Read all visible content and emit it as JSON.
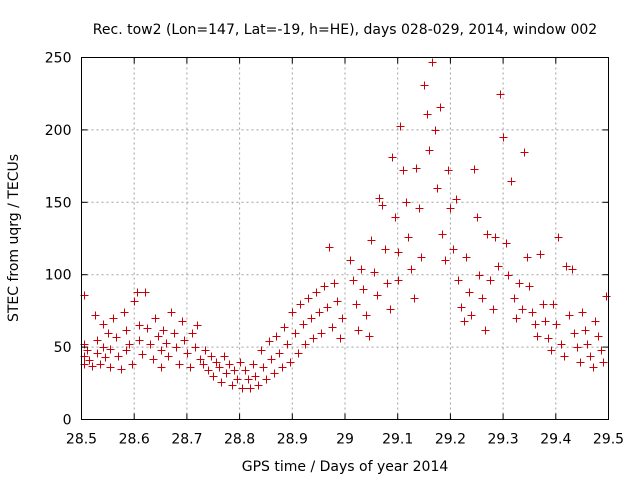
{
  "chart_data": {
    "type": "scatter",
    "title": "Rec. tow2 (Lon=147, Lat=-19, h=HE), days 028-029, 2014, window 002",
    "xlabel": "GPS time / Days of year 2014",
    "ylabel": "STEC from uqrg / TECUs",
    "xlim": [
      28.5,
      29.5
    ],
    "ylim": [
      0,
      250
    ],
    "x_ticks": [
      28.5,
      28.6,
      28.7,
      28.8,
      28.9,
      29,
      29.1,
      29.2,
      29.3,
      29.4,
      29.5
    ],
    "x_tick_labels": [
      "28.5",
      "28.6",
      "28.7",
      "28.8",
      "28.9",
      "29",
      "29.1",
      "29.2",
      "29.3",
      "29.4",
      "29.5"
    ],
    "y_ticks": [
      0,
      50,
      100,
      150,
      200,
      250
    ],
    "y_tick_labels": [
      "0",
      "50",
      "100",
      "150",
      "200",
      "250"
    ],
    "grid": true,
    "legend": "none",
    "marker": "+",
    "color": "#c8000a",
    "series": [
      {
        "name": "STEC",
        "points": [
          [
            28.505,
            86
          ],
          [
            28.505,
            52
          ],
          [
            28.505,
            44
          ],
          [
            28.505,
            38
          ],
          [
            28.51,
            48
          ],
          [
            28.515,
            41
          ],
          [
            28.52,
            37
          ],
          [
            28.525,
            72
          ],
          [
            28.53,
            55
          ],
          [
            28.53,
            46
          ],
          [
            28.535,
            38
          ],
          [
            28.54,
            66
          ],
          [
            28.54,
            50
          ],
          [
            28.545,
            43
          ],
          [
            28.55,
            60
          ],
          [
            28.555,
            49
          ],
          [
            28.555,
            36
          ],
          [
            28.56,
            70
          ],
          [
            28.565,
            57
          ],
          [
            28.57,
            44
          ],
          [
            28.575,
            35
          ],
          [
            28.58,
            74
          ],
          [
            28.585,
            62
          ],
          [
            28.585,
            48
          ],
          [
            28.59,
            52
          ],
          [
            28.595,
            38
          ],
          [
            28.6,
            82
          ],
          [
            28.605,
            88
          ],
          [
            28.61,
            65
          ],
          [
            28.61,
            55
          ],
          [
            28.615,
            45
          ],
          [
            28.62,
            88
          ],
          [
            28.625,
            63
          ],
          [
            28.63,
            52
          ],
          [
            28.635,
            42
          ],
          [
            28.64,
            70
          ],
          [
            28.645,
            58
          ],
          [
            28.65,
            48
          ],
          [
            28.65,
            36
          ],
          [
            28.655,
            62
          ],
          [
            28.66,
            53
          ],
          [
            28.665,
            44
          ],
          [
            28.67,
            74
          ],
          [
            28.675,
            60
          ],
          [
            28.68,
            50
          ],
          [
            28.685,
            38
          ],
          [
            28.69,
            68
          ],
          [
            28.695,
            55
          ],
          [
            28.7,
            46
          ],
          [
            28.705,
            36
          ],
          [
            28.71,
            60
          ],
          [
            28.715,
            50
          ],
          [
            28.72,
            65
          ],
          [
            28.725,
            42
          ],
          [
            28.73,
            38
          ],
          [
            28.735,
            48
          ],
          [
            28.74,
            34
          ],
          [
            28.745,
            44
          ],
          [
            28.75,
            30
          ],
          [
            28.755,
            40
          ],
          [
            28.76,
            36
          ],
          [
            28.765,
            26
          ],
          [
            28.77,
            44
          ],
          [
            28.775,
            32
          ],
          [
            28.78,
            38
          ],
          [
            28.785,
            24
          ],
          [
            28.79,
            34
          ],
          [
            28.795,
            28
          ],
          [
            28.8,
            40
          ],
          [
            28.805,
            22
          ],
          [
            28.81,
            34
          ],
          [
            28.815,
            28
          ],
          [
            28.82,
            22
          ],
          [
            28.825,
            38
          ],
          [
            28.83,
            30
          ],
          [
            28.835,
            24
          ],
          [
            28.84,
            48
          ],
          [
            28.845,
            36
          ],
          [
            28.85,
            28
          ],
          [
            28.855,
            54
          ],
          [
            28.86,
            42
          ],
          [
            28.865,
            32
          ],
          [
            28.87,
            58
          ],
          [
            28.875,
            46
          ],
          [
            28.88,
            36
          ],
          [
            28.885,
            64
          ],
          [
            28.89,
            52
          ],
          [
            28.895,
            40
          ],
          [
            28.9,
            74
          ],
          [
            28.905,
            60
          ],
          [
            28.91,
            46
          ],
          [
            28.915,
            80
          ],
          [
            28.92,
            66
          ],
          [
            28.925,
            52
          ],
          [
            28.93,
            84
          ],
          [
            28.935,
            70
          ],
          [
            28.94,
            56
          ],
          [
            28.945,
            88
          ],
          [
            28.95,
            74
          ],
          [
            28.955,
            60
          ],
          [
            28.96,
            92
          ],
          [
            28.965,
            78
          ],
          [
            28.97,
            119
          ],
          [
            28.975,
            64
          ],
          [
            28.98,
            94
          ],
          [
            28.985,
            82
          ],
          [
            28.99,
            56
          ],
          [
            28.995,
            70
          ],
          [
            29.01,
            110
          ],
          [
            29.015,
            96
          ],
          [
            29.02,
            80
          ],
          [
            29.025,
            62
          ],
          [
            29.03,
            104
          ],
          [
            29.035,
            90
          ],
          [
            29.04,
            72
          ],
          [
            29.045,
            58
          ],
          [
            29.05,
            124
          ],
          [
            29.055,
            102
          ],
          [
            29.06,
            86
          ],
          [
            29.065,
            153
          ],
          [
            29.07,
            148
          ],
          [
            29.075,
            118
          ],
          [
            29.08,
            94
          ],
          [
            29.085,
            76
          ],
          [
            29.09,
            181
          ],
          [
            29.095,
            140
          ],
          [
            29.1,
            116
          ],
          [
            29.1,
            96
          ],
          [
            29.105,
            203
          ],
          [
            29.11,
            172
          ],
          [
            29.115,
            150
          ],
          [
            29.12,
            126
          ],
          [
            29.125,
            104
          ],
          [
            29.13,
            84
          ],
          [
            29.135,
            174
          ],
          [
            29.14,
            146
          ],
          [
            29.145,
            112
          ],
          [
            29.15,
            231
          ],
          [
            29.155,
            211
          ],
          [
            29.16,
            186
          ],
          [
            29.165,
            247
          ],
          [
            29.17,
            200
          ],
          [
            29.175,
            160
          ],
          [
            29.18,
            216
          ],
          [
            29.185,
            128
          ],
          [
            29.19,
            110
          ],
          [
            29.195,
            172
          ],
          [
            29.2,
            146
          ],
          [
            29.205,
            118
          ],
          [
            29.21,
            152
          ],
          [
            29.215,
            96
          ],
          [
            29.22,
            78
          ],
          [
            29.225,
            68
          ],
          [
            29.23,
            112
          ],
          [
            29.235,
            88
          ],
          [
            29.24,
            72
          ],
          [
            29.245,
            173
          ],
          [
            29.25,
            140
          ],
          [
            29.255,
            100
          ],
          [
            29.26,
            84
          ],
          [
            29.265,
            62
          ],
          [
            29.27,
            128
          ],
          [
            29.275,
            96
          ],
          [
            29.28,
            76
          ],
          [
            29.285,
            126
          ],
          [
            29.29,
            106
          ],
          [
            29.295,
            225
          ],
          [
            29.3,
            195
          ],
          [
            29.305,
            122
          ],
          [
            29.31,
            100
          ],
          [
            29.315,
            165
          ],
          [
            29.32,
            84
          ],
          [
            29.325,
            70
          ],
          [
            29.33,
            94
          ],
          [
            29.335,
            76
          ],
          [
            29.34,
            185
          ],
          [
            29.345,
            112
          ],
          [
            29.35,
            92
          ],
          [
            29.355,
            74
          ],
          [
            29.36,
            66
          ],
          [
            29.365,
            58
          ],
          [
            29.37,
            114
          ],
          [
            29.375,
            80
          ],
          [
            29.38,
            68
          ],
          [
            29.385,
            56
          ],
          [
            29.39,
            48
          ],
          [
            29.395,
            80
          ],
          [
            29.4,
            66
          ],
          [
            29.405,
            126
          ],
          [
            29.41,
            52
          ],
          [
            29.415,
            44
          ],
          [
            29.42,
            106
          ],
          [
            29.425,
            72
          ],
          [
            29.43,
            104
          ],
          [
            29.435,
            60
          ],
          [
            29.44,
            50
          ],
          [
            29.445,
            40
          ],
          [
            29.45,
            74
          ],
          [
            29.455,
            62
          ],
          [
            29.46,
            52
          ],
          [
            29.465,
            44
          ],
          [
            29.47,
            36
          ],
          [
            29.475,
            68
          ],
          [
            29.48,
            58
          ],
          [
            29.485,
            48
          ],
          [
            29.49,
            40
          ],
          [
            29.495,
            85
          ]
        ]
      }
    ]
  }
}
